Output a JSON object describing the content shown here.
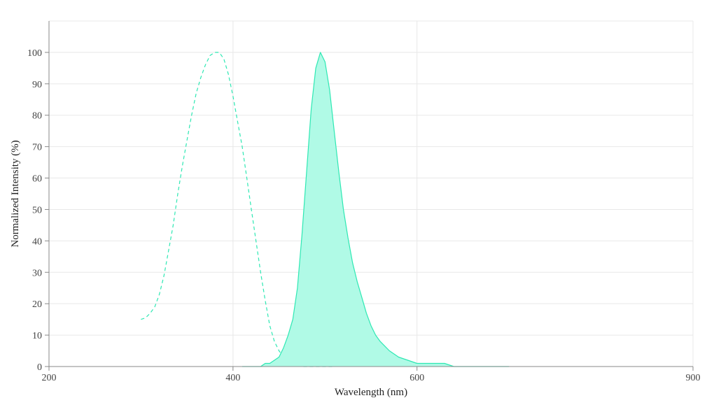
{
  "chart_data": {
    "type": "area",
    "xlabel": "Wavelength (nm)",
    "ylabel": "Normalized Intensity (%)",
    "xlim": [
      200,
      900
    ],
    "ylim": [
      0,
      110
    ],
    "x_ticks": [
      200,
      400,
      600,
      900
    ],
    "y_ticks": [
      0,
      10,
      20,
      30,
      40,
      50,
      60,
      70,
      80,
      90,
      100
    ],
    "grid": true,
    "colors": {
      "series": "#2EE8B3",
      "fill": "#B0FAE6",
      "grid": "#E8E8E8",
      "axis": "#888888"
    },
    "series": [
      {
        "style": "dashed",
        "filled": false,
        "x": [
          300,
          305,
          310,
          315,
          320,
          325,
          330,
          335,
          340,
          345,
          350,
          355,
          360,
          365,
          370,
          375,
          380,
          385,
          390,
          395,
          400,
          405,
          410,
          415,
          420,
          425,
          430,
          435,
          440,
          445,
          450,
          455,
          460,
          465,
          470,
          475,
          480,
          485,
          490,
          495,
          500,
          505,
          510
        ],
        "y": [
          15,
          15.5,
          17,
          19,
          23,
          29,
          37,
          45,
          55,
          64,
          72,
          80,
          87,
          92,
          96,
          99,
          100,
          100,
          98,
          93,
          86,
          78,
          70,
          60,
          50,
          40,
          30,
          21,
          13,
          8,
          5,
          3,
          2,
          1,
          0.5,
          0,
          0,
          0,
          0,
          0,
          0,
          0,
          0
        ]
      },
      {
        "style": "solid",
        "filled": true,
        "x": [
          410,
          420,
          430,
          435,
          440,
          445,
          450,
          455,
          460,
          465,
          470,
          475,
          480,
          485,
          490,
          495,
          500,
          505,
          510,
          515,
          520,
          525,
          530,
          535,
          540,
          545,
          550,
          555,
          560,
          565,
          570,
          575,
          580,
          590,
          600,
          610,
          620,
          630,
          640,
          650,
          660,
          670,
          680,
          690,
          700
        ],
        "y": [
          0,
          0,
          0,
          1,
          1,
          2,
          3,
          6,
          10,
          15,
          25,
          42,
          62,
          82,
          95,
          100,
          97,
          88,
          75,
          62,
          50,
          41,
          33,
          27,
          22,
          17,
          13,
          10,
          8,
          6.5,
          5,
          4,
          3,
          2,
          1,
          1,
          1,
          1,
          0,
          0,
          0,
          0,
          0,
          0,
          0
        ]
      }
    ]
  }
}
